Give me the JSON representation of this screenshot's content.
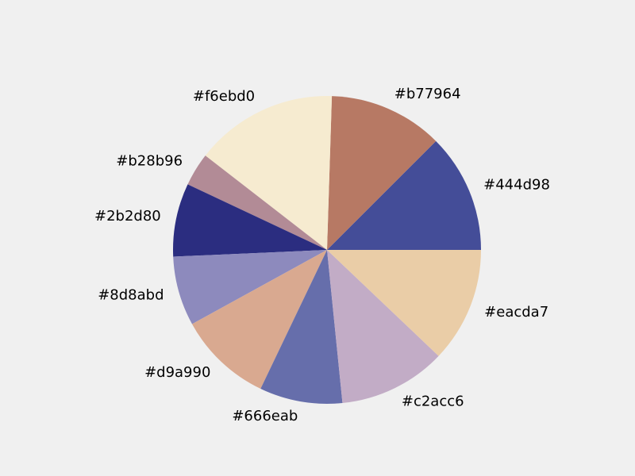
{
  "chart_data": {
    "type": "pie",
    "title": "",
    "start_angle_deg": 0,
    "direction": "counterclockwise",
    "slices": [
      {
        "label": "#444d98",
        "value": 12.5,
        "color": "#444d98"
      },
      {
        "label": "#b77964",
        "value": 12.0,
        "color": "#b77964"
      },
      {
        "label": "#f6ebd0",
        "value": 15.0,
        "color": "#f6ebd0"
      },
      {
        "label": "#b28b96",
        "value": 3.5,
        "color": "#b28b96"
      },
      {
        "label": "#2b2d80",
        "value": 7.7,
        "color": "#2b2d80"
      },
      {
        "label": "#8d8abd",
        "value": 7.3,
        "color": "#8d8abd"
      },
      {
        "label": "#d9a990",
        "value": 9.9,
        "color": "#d9a990"
      },
      {
        "label": "#666eab",
        "value": 8.7,
        "color": "#666eab"
      },
      {
        "label": "#c2acc6",
        "value": 11.3,
        "color": "#c2acc6"
      },
      {
        "label": "#eacda7",
        "value": 12.1,
        "color": "#eacda7"
      }
    ]
  }
}
